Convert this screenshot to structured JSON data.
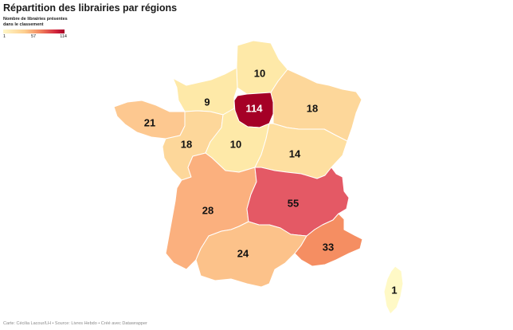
{
  "title": "Répartition des librairies par régions",
  "legend": {
    "title_line1": "Nombre de librairies présentes",
    "title_line2": "dans le classement",
    "tick_min": "1",
    "tick_mid": "57",
    "tick_max": "114"
  },
  "regions": {
    "ile_de_france": {
      "value": 114,
      "label": "114",
      "color": "#a50026"
    },
    "hauts_de_france": {
      "value": 10,
      "label": "10",
      "color": "#fee9a8"
    },
    "normandie": {
      "value": 9,
      "label": "9",
      "color": "#fee9a8"
    },
    "grand_est": {
      "value": 18,
      "label": "18",
      "color": "#fdd79a"
    },
    "bretagne": {
      "value": 21,
      "label": "21",
      "color": "#fdc890"
    },
    "pays_de_la_loire": {
      "value": 18,
      "label": "18",
      "color": "#fdd79a"
    },
    "centre_val_de_loire": {
      "value": 10,
      "label": "10",
      "color": "#fee9a8"
    },
    "bourgogne_franche_comte": {
      "value": 14,
      "label": "14",
      "color": "#fedfa0"
    },
    "nouvelle_aquitaine": {
      "value": 28,
      "label": "28",
      "color": "#fbb07e"
    },
    "auvergne_rhone_alpes": {
      "value": 55,
      "label": "55",
      "color": "#e45965"
    },
    "occitanie": {
      "value": 24,
      "label": "24",
      "color": "#fcc28a"
    },
    "provence_alpes_cote_d_azur": {
      "value": 33,
      "label": "33",
      "color": "#f58e62"
    },
    "corse": {
      "value": 1,
      "label": "1",
      "color": "#fff9c6"
    }
  },
  "footer": "Carte: Cécilia Lacour/LH • Source: Livres Hebdo • Créé avec Datawrapper"
}
